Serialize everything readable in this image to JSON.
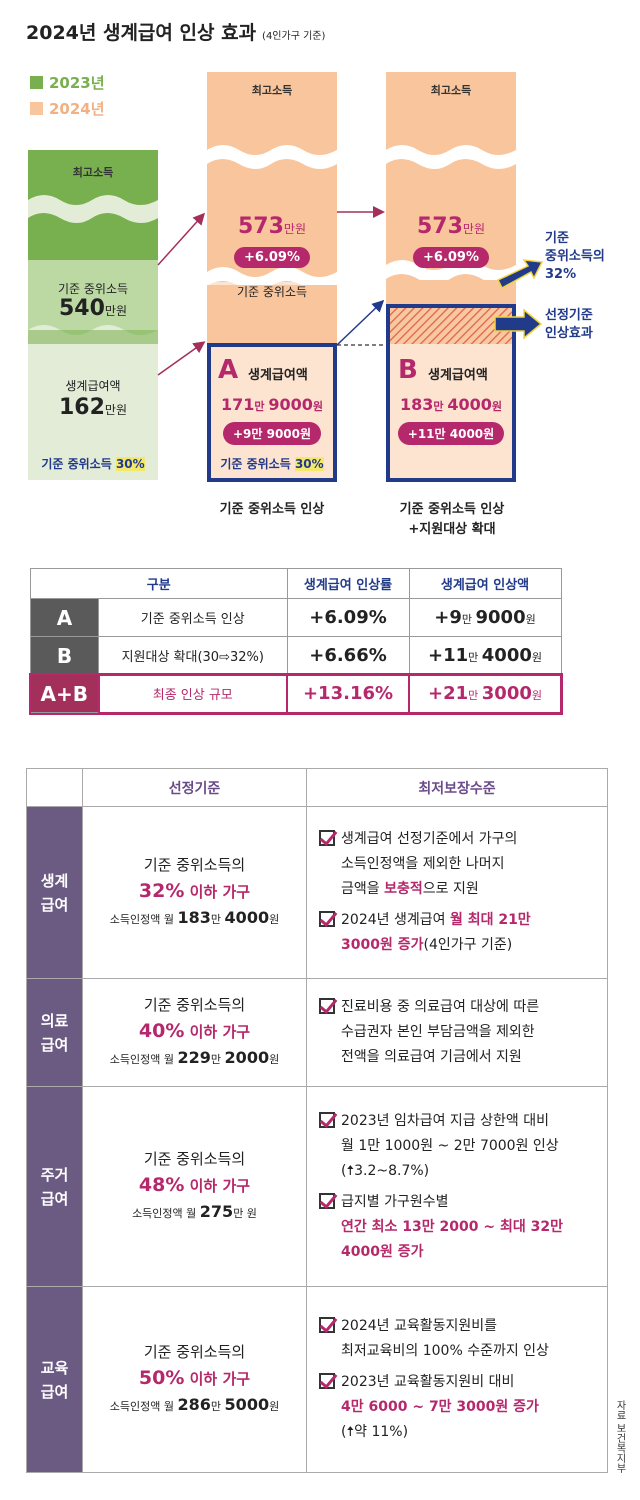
{
  "title": "2024년 생계급여 인상 효과",
  "title_note": "(4인가구 기준)",
  "legend": [
    {
      "label": "2023년",
      "color": "#78b04f"
    },
    {
      "label": "2024년",
      "color": "#f9c59c"
    }
  ],
  "col2023": {
    "top_label": "최고소득",
    "mid_label": "기준 중위소득",
    "mid_value": "540",
    "mid_unit": "만원",
    "low_label": "생계급여액",
    "low_value": "162",
    "low_unit": "만원",
    "note_prefix": "기준 중위소득 ",
    "note_pct": "30%"
  },
  "colA": {
    "top_label": "최고소득",
    "amount": "573",
    "amount_unit": "만원",
    "pct": "+6.09%",
    "mid_label": "기준 중위소득",
    "letter": "A",
    "box_label": "생계급여액",
    "value_a": "171",
    "value_b": "만 ",
    "value_c": "9000",
    "value_d": "원",
    "increase": "+9만 9000원",
    "note_prefix": "기준 중위소득 ",
    "note_pct": "30%",
    "caption": "기준 중위소득 인상"
  },
  "colB": {
    "top_label": "최고소득",
    "amount": "573",
    "amount_unit": "만원",
    "pct": "+6.09%",
    "letter": "B",
    "box_label": "생계급여액",
    "value_a": "183",
    "value_b": "만 ",
    "value_c": "4000",
    "value_d": "원",
    "increase": "+11만 4000원",
    "caption_1": "기준 중위소득 인상",
    "caption_2": "+지원대상 확대"
  },
  "callouts": {
    "c1_1": "기준",
    "c1_2": "중위소득의",
    "c1_3": "32%",
    "c2_1": "선정기준",
    "c2_2": "인상효과"
  },
  "table1": {
    "headers": [
      "구분",
      "생계급여 인상률",
      "생계급여 인상액"
    ],
    "rows": [
      {
        "id": "A",
        "label": "기준 중위소득 인상",
        "rate": "+6.09%",
        "amt_a": "+9",
        "amt_b": "만 ",
        "amt_c": "9000",
        "amt_d": "원"
      },
      {
        "id": "B",
        "label": "지원대상 확대(30⇨32%)",
        "rate": "+6.66%",
        "amt_a": "+11",
        "amt_b": "만 ",
        "amt_c": "4000",
        "amt_d": "원"
      },
      {
        "id": "A+B",
        "label": "최종 인상 규모",
        "rate": "+13.16%",
        "amt_a": "+21",
        "amt_b": "만 ",
        "amt_c": "3000",
        "amt_d": "원"
      }
    ]
  },
  "table2": {
    "headers": [
      "선정기준",
      "최저보장수준"
    ],
    "rows": [
      {
        "cat1": "생계",
        "cat2": "급여",
        "l1": "기준 중위소득의",
        "pct": "32%",
        "pct_suffix": " 이하 가구",
        "l3_a": "소득인정액 월 ",
        "l3_b": "183",
        "l3_c": "만 ",
        "l3_d": "4000",
        "l3_e": "원",
        "items": [
          {
            "parts": [
              [
                "생계급여 선정기준에서 가구의",
                false
              ],
              [
                "\n소득인정액을 제외한 나머지\n금액을 ",
                false
              ],
              [
                "보충적",
                true
              ],
              [
                "으로 지원",
                false
              ]
            ]
          },
          {
            "parts": [
              [
                "2024년 생계급여 ",
                false
              ],
              [
                "월 최대 21만\n3000원 증가",
                true
              ],
              [
                "(4인가구 기준)",
                false
              ]
            ]
          }
        ]
      },
      {
        "cat1": "의료",
        "cat2": "급여",
        "l1": "기준 중위소득의",
        "pct": "40%",
        "pct_suffix": " 이하 가구",
        "l3_a": "소득인정액 월 ",
        "l3_b": "229",
        "l3_c": "만 ",
        "l3_d": "2000",
        "l3_e": "원",
        "items": [
          {
            "parts": [
              [
                "진료비용 중 의료급여 대상에 따른\n수급권자 본인 부담금액을 제외한\n전액을 의료급여 기금에서 지원",
                false
              ]
            ]
          }
        ]
      },
      {
        "cat1": "주거",
        "cat2": "급여",
        "l1": "기준 중위소득의",
        "pct": "48%",
        "pct_suffix": " 이하 가구",
        "l3_a": "소득인정액 월 ",
        "l3_b": "275",
        "l3_c": "만 원",
        "l3_d": "",
        "l3_e": "",
        "items": [
          {
            "parts": [
              [
                "2023년 임차급여 지급 상한액 대비\n월 1만 1000원 ~ 2만 7000원 인상\n(🠅3.2~8.7%)",
                false
              ]
            ]
          },
          {
            "parts": [
              [
                "급지별 가구원수별\n",
                false
              ],
              [
                "연간 최소 13만 2000 ~ 최대 32만\n4000원 증가",
                true
              ]
            ]
          }
        ]
      },
      {
        "cat1": "교육",
        "cat2": "급여",
        "l1": "기준 중위소득의",
        "pct": "50%",
        "pct_suffix": " 이하 가구",
        "l3_a": "소득인정액 월 ",
        "l3_b": "286",
        "l3_c": "만 ",
        "l3_d": "5000",
        "l3_e": "원",
        "items": [
          {
            "parts": [
              [
                "2024년 교육활동지원비를\n최저교육비의 100% 수준까지 인상",
                false
              ]
            ]
          },
          {
            "parts": [
              [
                "2023년 교육활동지원비 대비\n",
                false
              ],
              [
                "4만 6000 ~ 7만 3000원 증가",
                true
              ],
              [
                "\n(🠅약 11%)",
                false
              ]
            ]
          }
        ]
      }
    ]
  },
  "source": "자료 보건복지부"
}
